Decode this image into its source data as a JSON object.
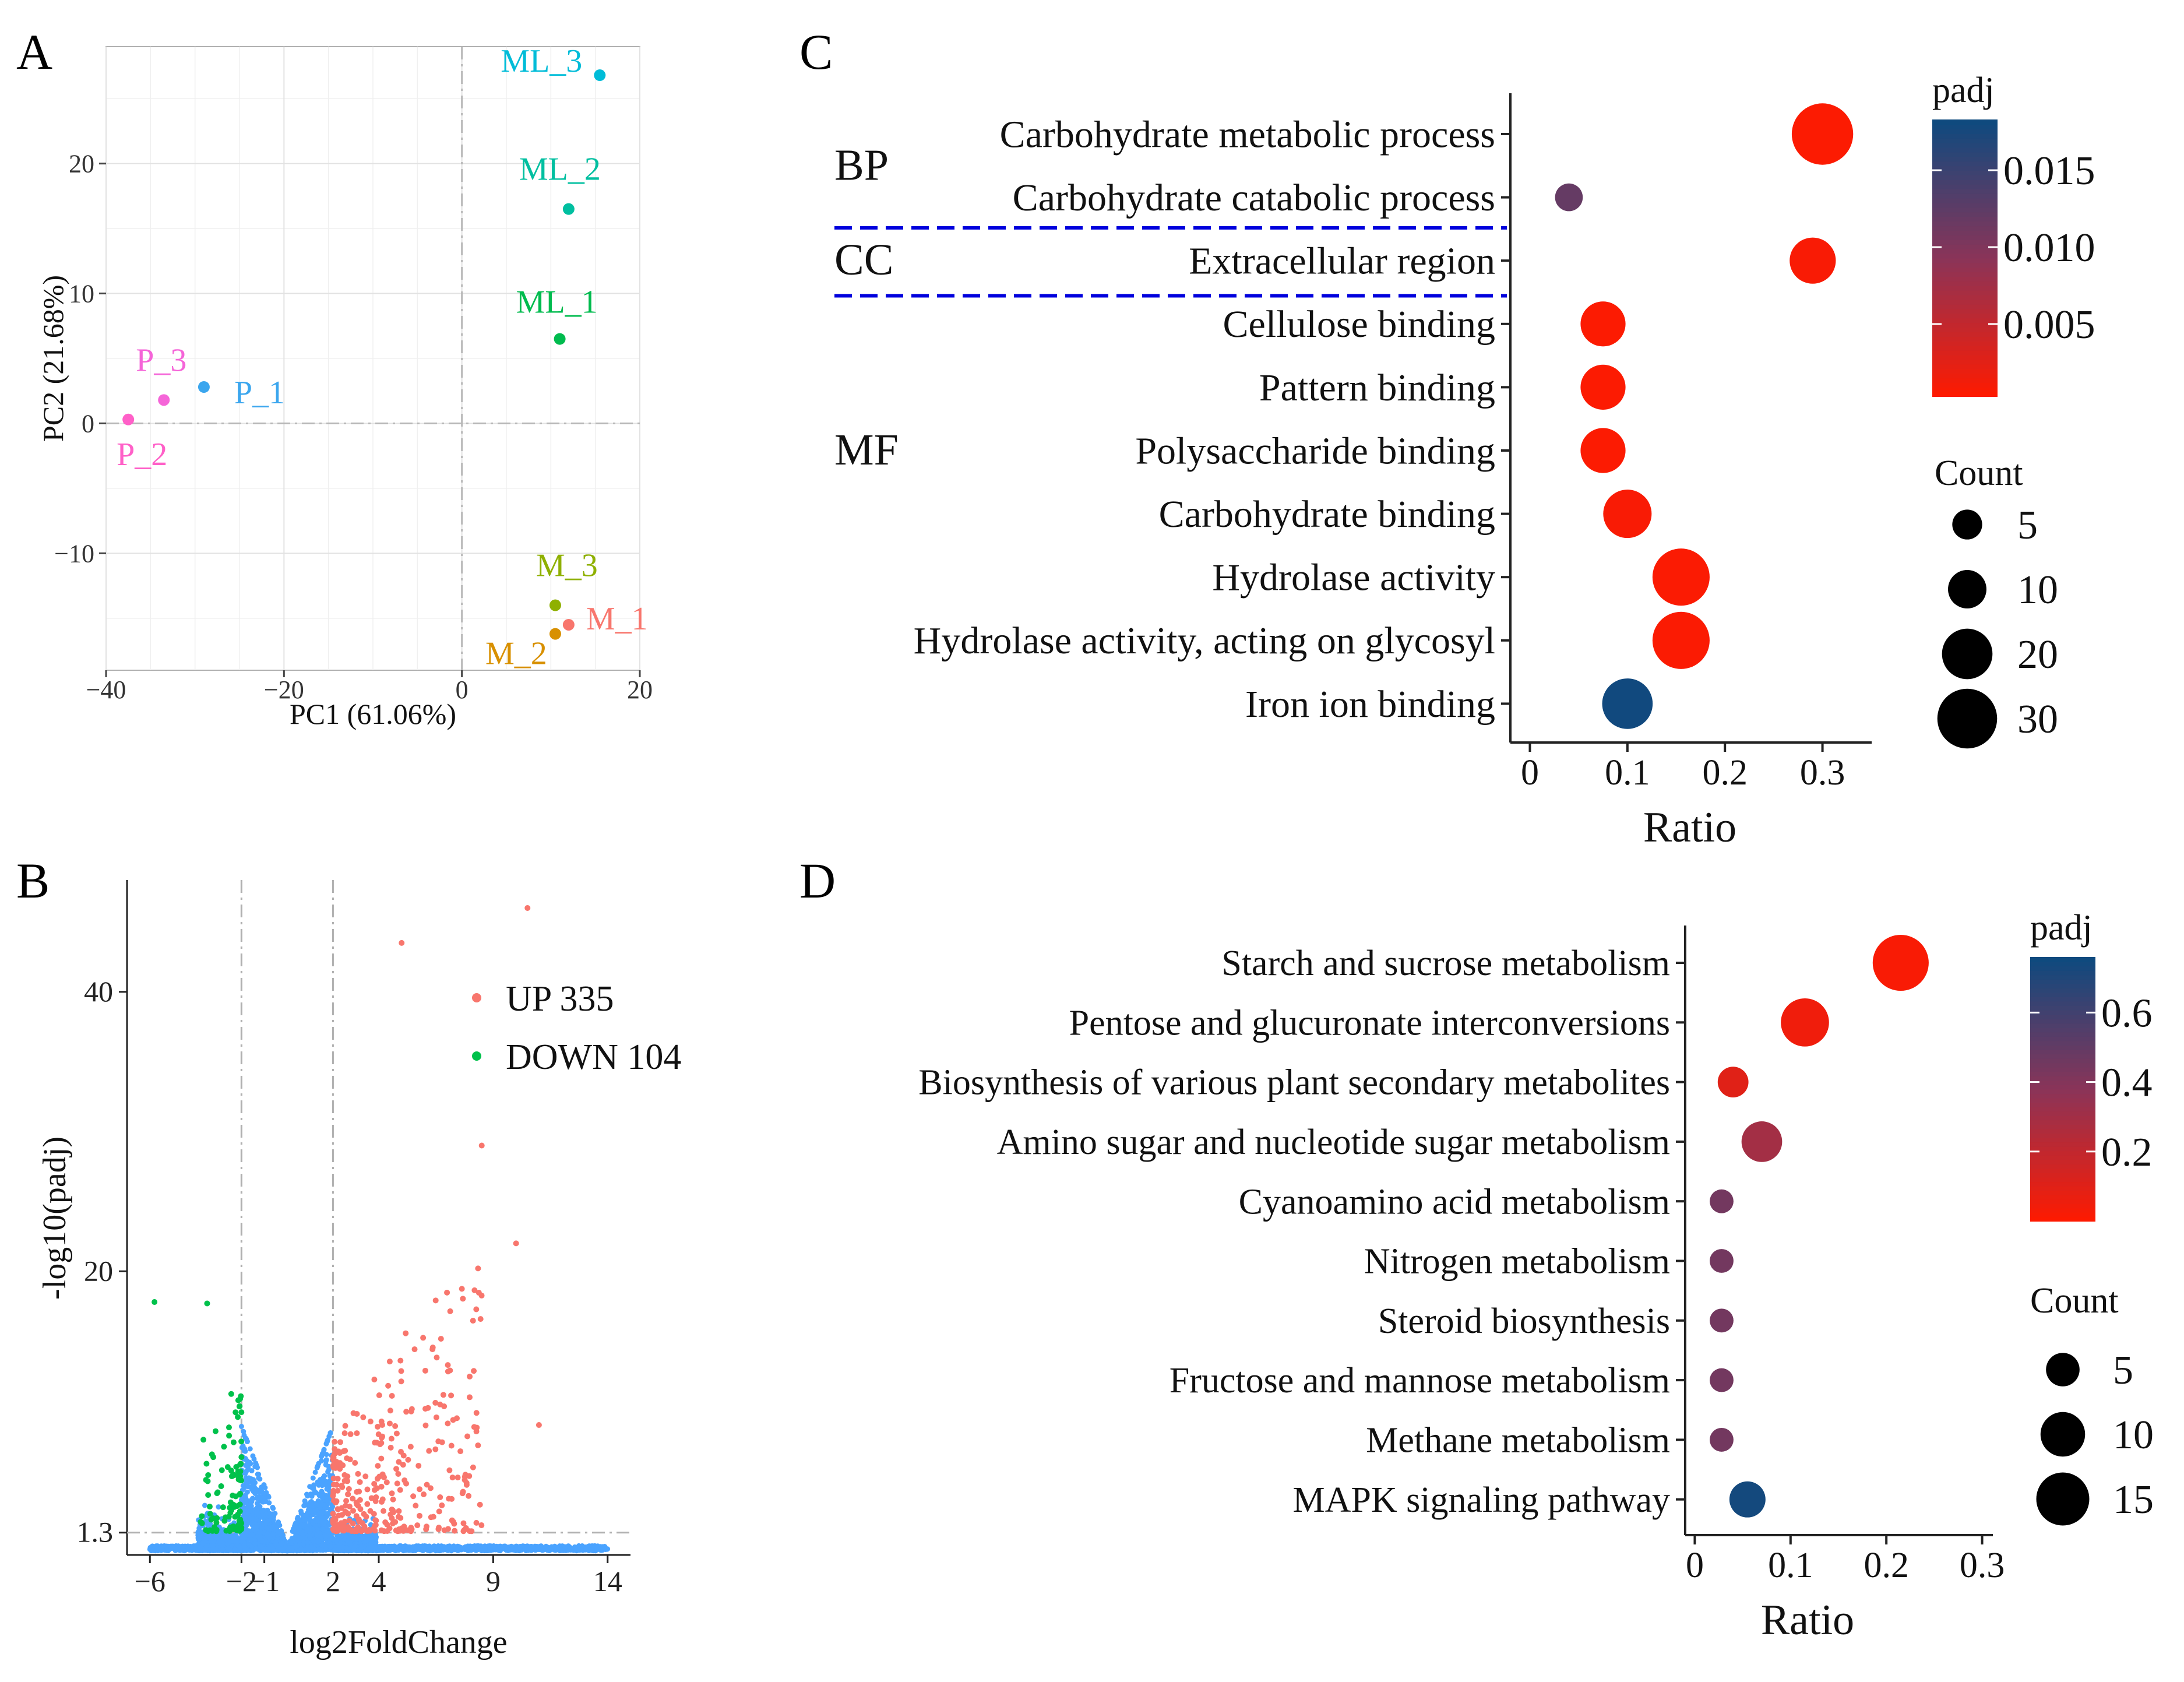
{
  "panels": {
    "A": "A",
    "B": "B",
    "C": "C",
    "D": "D"
  },
  "colors": {
    "padj_low": "#ff1a00",
    "padj_mid": "#8a3458",
    "padj_high": "#0d4a7f",
    "up": "#f8766d",
    "down": "#00c14b",
    "ns": "#4aa3ff",
    "separator": "#0000dd"
  },
  "chart_data": [
    {
      "panel": "A",
      "type": "scatter",
      "xlabel": "PC1 (61.06%)",
      "ylabel": "PC2 (21.68%)",
      "xlim": [
        -40,
        20
      ],
      "ylim": [
        -19,
        29
      ],
      "xticks": [
        -40,
        -20,
        0,
        20
      ],
      "xtick_labels": [
        "−40",
        "−20",
        "0",
        "20"
      ],
      "yticks": [
        -10,
        0,
        10,
        20
      ],
      "ytick_labels": [
        "−10",
        "0",
        "10",
        "20"
      ],
      "grid": true,
      "points": [
        {
          "label": "ML_3",
          "x": 15.5,
          "y": 26.8,
          "color": "#00bcd8"
        },
        {
          "label": "ML_2",
          "x": 12.0,
          "y": 16.5,
          "color": "#00bfa0"
        },
        {
          "label": "ML_1",
          "x": 11.0,
          "y": 6.5,
          "color": "#00bb4e"
        },
        {
          "label": "P_3",
          "x": -33.5,
          "y": 1.8,
          "color": "#f565d8"
        },
        {
          "label": "P_1",
          "x": -29.0,
          "y": 2.8,
          "color": "#3ba6ee"
        },
        {
          "label": "P_2",
          "x": -37.5,
          "y": 0.3,
          "color": "#ff60c8"
        },
        {
          "label": "M_3",
          "x": 10.5,
          "y": -14.0,
          "color": "#8fb000"
        },
        {
          "label": "M_2",
          "x": 10.5,
          "y": -16.2,
          "color": "#d89000"
        },
        {
          "label": "M_1",
          "x": 12.0,
          "y": -15.5,
          "color": "#f8766d"
        }
      ]
    },
    {
      "panel": "B",
      "type": "scatter",
      "xlabel": "log2FoldChange",
      "ylabel": "-log10(padj)",
      "xticks": [
        -6,
        -2,
        -1,
        2,
        4,
        9,
        14
      ],
      "xtick_labels": [
        "−6",
        "−2",
        "−1",
        "2",
        "4",
        "9",
        "14"
      ],
      "xlim": [
        -7,
        15
      ],
      "yticks": [
        1.3,
        20,
        40
      ],
      "ytick_labels": [
        "1.3",
        "20",
        "40"
      ],
      "ylim": [
        -0.3,
        48
      ],
      "thresholds": {
        "x": [
          -2,
          2
        ],
        "y": 1.3
      },
      "legend": [
        {
          "name": "UP 335",
          "color": "#f8766d"
        },
        {
          "name": "DOWN 104",
          "color": "#00c14b"
        }
      ],
      "notable_points": [
        {
          "x": 10.5,
          "y": 46.0
        },
        {
          "x": 5.0,
          "y": 43.5
        },
        {
          "x": 8.5,
          "y": 29.0
        },
        {
          "x": -5.8,
          "y": 17.8
        },
        {
          "x": -3.5,
          "y": 17.7
        },
        {
          "x": 10.0,
          "y": 22.0
        },
        {
          "x": 11.0,
          "y": 9.0
        }
      ]
    },
    {
      "panel": "C",
      "type": "scatter",
      "xlabel": "Ratio",
      "xlim": [
        -0.02,
        0.36
      ],
      "xticks": [
        0,
        0.1,
        0.2,
        0.3
      ],
      "xtick_labels": [
        "0",
        "0.1",
        "0.2",
        "0.3"
      ],
      "groups": [
        {
          "name": "BP",
          "terms": [
            "Carbohydrate metabolic process",
            "Carbohydrate catabolic process"
          ]
        },
        {
          "name": "CC",
          "terms": [
            "Extracellular region"
          ]
        },
        {
          "name": "MF",
          "terms": [
            "Cellulose binding",
            "Pattern binding",
            "Polysaccharide binding",
            "Carbohydrate binding",
            "Hydrolase activity",
            "Hydrolase activity, acting on glycosyl",
            "Iron ion binding"
          ]
        }
      ],
      "terms": [
        {
          "term": "Carbohydrate metabolic process",
          "ratio": 0.3,
          "count": 32,
          "padj": 0.0005
        },
        {
          "term": "Carbohydrate catabolic process",
          "ratio": 0.04,
          "count": 4,
          "padj": 0.012
        },
        {
          "term": "Extracellular region",
          "ratio": 0.29,
          "count": 16,
          "padj": 0.0008
        },
        {
          "term": "Cellulose binding",
          "ratio": 0.075,
          "count": 15,
          "padj": 0.0005
        },
        {
          "term": "Pattern binding",
          "ratio": 0.075,
          "count": 15,
          "padj": 0.0005
        },
        {
          "term": "Polysaccharide binding",
          "ratio": 0.075,
          "count": 15,
          "padj": 0.0005
        },
        {
          "term": "Carbohydrate binding",
          "ratio": 0.1,
          "count": 18,
          "padj": 0.0008
        },
        {
          "term": "Hydrolase activity",
          "ratio": 0.155,
          "count": 27,
          "padj": 0.0006
        },
        {
          "term": "Hydrolase activity, acting on glycosyl",
          "ratio": 0.155,
          "count": 27,
          "padj": 0.0006
        },
        {
          "term": "Iron ion binding",
          "ratio": 0.1,
          "count": 20,
          "padj": 0.018
        }
      ],
      "color_legend": {
        "title": "padj",
        "ticks": [
          0.005,
          0.01,
          0.015
        ],
        "tick_labels": [
          "0.005",
          "0.010",
          "0.015"
        ],
        "range": [
          0.0003,
          0.0183
        ]
      },
      "size_legend": {
        "title": "Count",
        "values": [
          5,
          10,
          20,
          30
        ],
        "labels": [
          "5",
          "10",
          "20",
          "30"
        ]
      }
    },
    {
      "panel": "D",
      "type": "scatter",
      "xlabel": "Ratio",
      "xlim": [
        -0.01,
        0.31
      ],
      "xticks": [
        0,
        0.1,
        0.2,
        0.3
      ],
      "xtick_labels": [
        "0",
        "0.1",
        "0.2",
        "0.3"
      ],
      "terms": [
        {
          "term": "Starch and sucrose metabolism",
          "ratio": 0.215,
          "count": 17,
          "padj": 0.02
        },
        {
          "term": "Pentose and glucuronate interconversions",
          "ratio": 0.115,
          "count": 12,
          "padj": 0.05
        },
        {
          "term": "Biosynthesis of various plant secondary metabolites",
          "ratio": 0.04,
          "count": 4,
          "padj": 0.1
        },
        {
          "term": "Amino sugar and nucleotide sugar metabolism",
          "ratio": 0.07,
          "count": 8,
          "padj": 0.3
        },
        {
          "term": "Cyanoamino acid metabolism",
          "ratio": 0.028,
          "count": 2,
          "padj": 0.45
        },
        {
          "term": "Nitrogen metabolism",
          "ratio": 0.028,
          "count": 2,
          "padj": 0.45
        },
        {
          "term": "Steroid biosynthesis",
          "ratio": 0.028,
          "count": 2,
          "padj": 0.45
        },
        {
          "term": "Fructose and mannose metabolism",
          "ratio": 0.028,
          "count": 2,
          "padj": 0.45
        },
        {
          "term": "Methane metabolism",
          "ratio": 0.028,
          "count": 2,
          "padj": 0.45
        },
        {
          "term": "MAPK signaling pathway",
          "ratio": 0.055,
          "count": 6,
          "padj": 0.74
        }
      ],
      "color_legend": {
        "title": "padj",
        "ticks": [
          0.2,
          0.4,
          0.6
        ],
        "tick_labels": [
          "0.2",
          "0.4",
          "0.6"
        ],
        "range": [
          0.0,
          0.76
        ]
      },
      "size_legend": {
        "title": "Count",
        "values": [
          5,
          10,
          15
        ],
        "labels": [
          "5",
          "10",
          "15"
        ]
      }
    }
  ]
}
